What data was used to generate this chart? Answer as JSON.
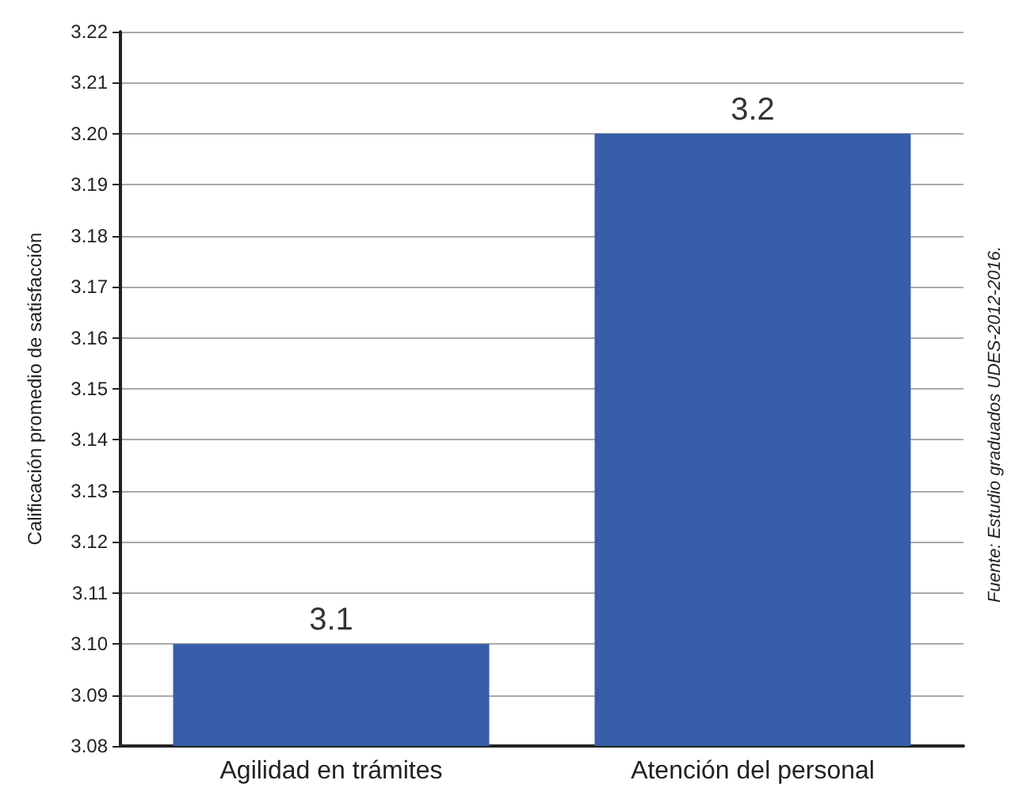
{
  "chart_data": {
    "type": "bar",
    "ylabel": "Calificación promedio de satisfacción",
    "categories": [
      "Agilidad en trámites",
      "Atención del personal"
    ],
    "values": [
      3.1,
      3.2
    ],
    "color": "#365ea8",
    "data_labels": true,
    "ylim": [
      3.08,
      3.22
    ],
    "yticks": [
      {
        "value": 3.08,
        "label": "3.08"
      },
      {
        "value": 3.09,
        "label": "3.09"
      },
      {
        "value": 3.1,
        "label": "3.10"
      },
      {
        "value": 3.11,
        "label": "3.11"
      },
      {
        "value": 3.12,
        "label": "3.12"
      },
      {
        "value": 3.13,
        "label": "3.13"
      },
      {
        "value": 3.14,
        "label": "3.14"
      },
      {
        "value": 3.15,
        "label": "3.15"
      },
      {
        "value": 3.16,
        "label": "3.16"
      },
      {
        "value": 3.17,
        "label": "3.17"
      },
      {
        "value": 3.18,
        "label": "3.18"
      },
      {
        "value": 3.19,
        "label": "3.19"
      },
      {
        "value": 3.2,
        "label": "3.20"
      },
      {
        "value": 3.21,
        "label": "3.21"
      },
      {
        "value": 3.22,
        "label": "3.22"
      }
    ],
    "grid": "y",
    "annotations": [
      "Fuente: Estudio graduados UDES-2012-2016."
    ]
  }
}
